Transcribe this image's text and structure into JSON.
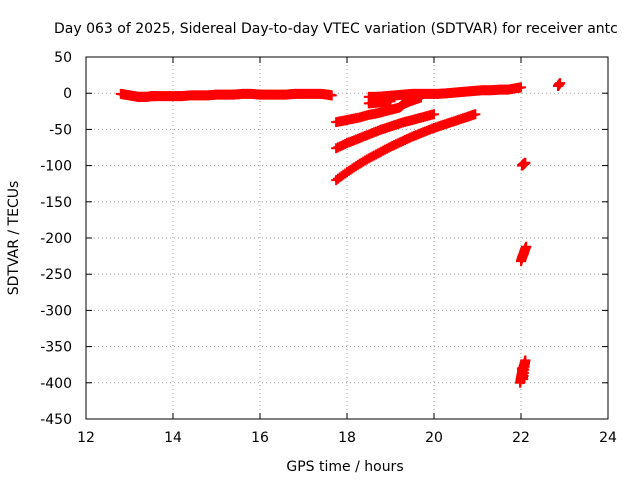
{
  "chart_data": {
    "type": "scatter",
    "title": "Day 063 of 2025, Sidereal Day-to-day VTEC variation (SDTVAR) for receiver antc",
    "xlabel": "GPS time / hours",
    "ylabel": "SDTVAR / TECUs",
    "xlim": [
      12,
      24
    ],
    "ylim": [
      -450,
      50
    ],
    "xticks": [
      "12",
      "14",
      "16",
      "18",
      "20",
      "22",
      "24"
    ],
    "yticks": [
      "50",
      "0",
      "-50",
      "-100",
      "-150",
      "-200",
      "-250",
      "-300",
      "-350",
      "-400",
      "-450"
    ],
    "grid": true,
    "marker": "plus",
    "series_color": "#ff0000",
    "series": [
      {
        "points": [
          [
            12.8,
            -1
          ],
          [
            12.9,
            -2
          ],
          [
            13.0,
            -3
          ],
          [
            13.1,
            -4
          ],
          [
            13.2,
            -5
          ],
          [
            13.3,
            -5
          ],
          [
            13.4,
            -5
          ],
          [
            13.5,
            -4
          ],
          [
            13.6,
            -4
          ],
          [
            13.8,
            -4
          ],
          [
            14.0,
            -4
          ],
          [
            14.2,
            -4
          ],
          [
            14.4,
            -3
          ],
          [
            14.6,
            -3
          ],
          [
            14.8,
            -3
          ],
          [
            15.0,
            -2
          ],
          [
            15.2,
            -2
          ],
          [
            15.4,
            -2
          ],
          [
            15.6,
            -1
          ],
          [
            15.8,
            -1
          ],
          [
            16.0,
            -2
          ],
          [
            16.2,
            -2
          ],
          [
            16.4,
            -2
          ],
          [
            16.6,
            -2
          ],
          [
            16.8,
            -1
          ],
          [
            17.0,
            -1
          ],
          [
            17.2,
            -1
          ],
          [
            17.4,
            -1
          ],
          [
            17.55,
            -2
          ],
          [
            17.65,
            -3
          ]
        ]
      },
      {
        "points": [
          [
            18.5,
            -5
          ],
          [
            18.7,
            -5
          ],
          [
            18.9,
            -4
          ],
          [
            19.1,
            -3
          ],
          [
            19.3,
            -2
          ],
          [
            19.5,
            -1
          ],
          [
            19.7,
            -1
          ],
          [
            19.9,
            -1
          ],
          [
            20.1,
            -1
          ],
          [
            20.3,
            0
          ],
          [
            20.5,
            1
          ],
          [
            20.7,
            2
          ],
          [
            20.9,
            3
          ],
          [
            21.1,
            4
          ],
          [
            21.3,
            4
          ],
          [
            21.5,
            5
          ],
          [
            21.7,
            5
          ],
          [
            21.9,
            7
          ],
          [
            22.0,
            8
          ]
        ]
      },
      {
        "points": [
          [
            18.5,
            -14
          ],
          [
            18.7,
            -13
          ],
          [
            18.9,
            -12
          ],
          [
            19.0,
            -11
          ],
          [
            18.6,
            -8
          ],
          [
            18.8,
            -10
          ]
        ]
      },
      {
        "points": [
          [
            17.75,
            -40
          ],
          [
            18.0,
            -37
          ],
          [
            18.25,
            -34
          ],
          [
            18.5,
            -30
          ],
          [
            18.75,
            -27
          ],
          [
            19.0,
            -23
          ],
          [
            19.2,
            -20
          ],
          [
            19.3,
            -15
          ],
          [
            19.5,
            -10
          ],
          [
            19.7,
            -6
          ]
        ]
      },
      {
        "points": [
          [
            17.75,
            -76
          ],
          [
            18.0,
            -69
          ],
          [
            18.25,
            -63
          ],
          [
            18.5,
            -57
          ],
          [
            18.75,
            -51
          ],
          [
            19.0,
            -46
          ],
          [
            19.25,
            -41
          ],
          [
            19.5,
            -37
          ],
          [
            19.75,
            -33
          ],
          [
            20.0,
            -29
          ]
        ]
      },
      {
        "points": [
          [
            17.75,
            -120
          ],
          [
            18.0,
            -109
          ],
          [
            18.25,
            -99
          ],
          [
            18.5,
            -90
          ],
          [
            18.75,
            -82
          ],
          [
            19.0,
            -74
          ],
          [
            19.25,
            -67
          ],
          [
            19.5,
            -60
          ],
          [
            19.75,
            -54
          ],
          [
            20.0,
            -48
          ],
          [
            20.25,
            -43
          ],
          [
            20.5,
            -38
          ],
          [
            20.75,
            -33
          ],
          [
            20.95,
            -29
          ]
        ]
      },
      {
        "points": [
          [
            22.02,
            -100
          ],
          [
            22.06,
            -98
          ],
          [
            22.1,
            -96
          ]
        ]
      },
      {
        "points": [
          [
            22.0,
            -232
          ],
          [
            22.03,
            -226
          ],
          [
            22.06,
            -222
          ],
          [
            22.09,
            -216
          ],
          [
            22.12,
            -212
          ]
        ]
      },
      {
        "points": [
          [
            21.98,
            -400
          ],
          [
            22.0,
            -393
          ],
          [
            22.02,
            -387
          ],
          [
            22.04,
            -382
          ],
          [
            22.06,
            -378
          ],
          [
            22.08,
            -374
          ],
          [
            22.1,
            -369
          ],
          [
            22.05,
            -395
          ],
          [
            22.02,
            -380
          ]
        ]
      },
      {
        "points": [
          [
            22.85,
            10
          ],
          [
            22.9,
            14
          ]
        ]
      }
    ]
  }
}
